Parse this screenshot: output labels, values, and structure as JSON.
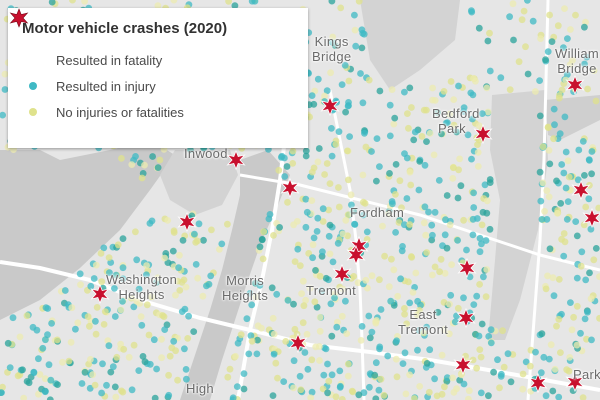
{
  "legend": {
    "title": "Motor vehicle crashes (2020)",
    "items": [
      {
        "label": "Resulted in fatality",
        "symbol": "star-burst-icon",
        "color": "#c8102e"
      },
      {
        "label": "Resulted in injury",
        "symbol": "circle",
        "color": "#3fb9c4"
      },
      {
        "label": "No injuries or fatalities",
        "symbol": "circle",
        "color": "#dfe28c"
      }
    ]
  },
  "places": [
    {
      "lines": [
        "Kings",
        "Bridge"
      ]
    },
    {
      "lines": [
        "William",
        "Bridge"
      ]
    },
    {
      "lines": [
        "Bedford",
        "Park"
      ]
    },
    {
      "lines": [
        "Inwood"
      ]
    },
    {
      "lines": [
        "Fordham"
      ]
    },
    {
      "lines": [
        "Washington",
        "Heights"
      ]
    },
    {
      "lines": [
        "Morris",
        "Heights"
      ]
    },
    {
      "lines": [
        "Tremont"
      ]
    },
    {
      "lines": [
        "East",
        "Tremont"
      ]
    },
    {
      "lines": [
        "High"
      ]
    },
    {
      "lines": [
        "Park"
      ]
    }
  ],
  "colors": {
    "land": "#e6e6e6",
    "water": "#c9c9c9",
    "park": "#d3d3d3",
    "road": "#ffffff",
    "injury": "#3fb9c4",
    "injury_dark": "#2aa39b",
    "no_injury": "#dfe28c",
    "no_injury_light": "#ecebb0",
    "fatality": "#c8102e"
  }
}
